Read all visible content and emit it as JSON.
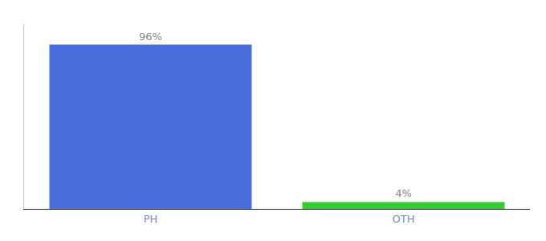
{
  "chart_data": {
    "type": "bar",
    "categories": [
      "PH",
      "OTH"
    ],
    "values": [
      96,
      4
    ],
    "value_labels": [
      "96%",
      "4%"
    ],
    "data_labels": true,
    "colors": [
      "#4a6fdc",
      "#33cc33"
    ],
    "ylim": [
      0,
      108
    ],
    "grid": false,
    "tick_labels": "x"
  }
}
